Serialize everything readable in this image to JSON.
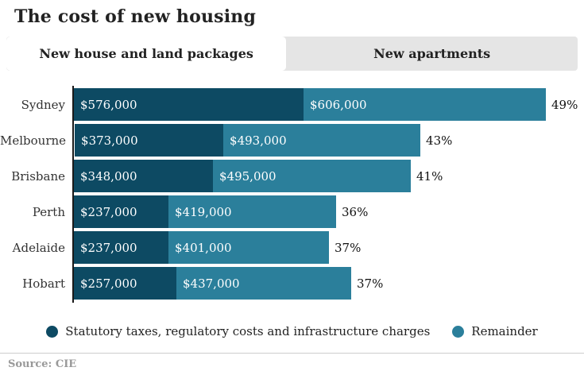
{
  "page": {
    "title": "The cost of new housing",
    "source": "Source: CIE"
  },
  "tabs": [
    {
      "label": "New house and land packages",
      "active": true
    },
    {
      "label": "New apartments",
      "active": false
    }
  ],
  "legend": [
    {
      "label": "Statutory taxes, regulatory costs and infrastructure charges",
      "color": "#0d4a63"
    },
    {
      "label": "Remainder",
      "color": "#2b7f9b"
    }
  ],
  "colors": {
    "statutory": "#0d4a63",
    "remainder": "#2b7f9b",
    "tab_inactive_bg": "#e5e5e5",
    "axis_line": "#1a1a1a"
  },
  "chart_data": {
    "type": "bar",
    "orientation": "horizontal",
    "stacked": true,
    "title": "The cost of new housing",
    "categories": [
      "Sydney",
      "Melbourne",
      "Brisbane",
      "Perth",
      "Adelaide",
      "Hobart"
    ],
    "series": [
      {
        "name": "Statutory taxes, regulatory costs and infrastructure charges",
        "color": "#0d4a63",
        "values": [
          576000,
          373000,
          348000,
          237000,
          237000,
          257000
        ],
        "labels": [
          "$576,000",
          "$373,000",
          "$348,000",
          "$237,000",
          "$237,000",
          "$257,000"
        ]
      },
      {
        "name": "Remainder",
        "color": "#2b7f9b",
        "values": [
          606000,
          493000,
          495000,
          419000,
          401000,
          437000
        ],
        "labels": [
          "$606,000",
          "$493,000",
          "$495,000",
          "$419,000",
          "$401,000",
          "$437,000"
        ]
      }
    ],
    "totals": [
      1182000,
      866000,
      843000,
      656000,
      638000,
      694000
    ],
    "percent_labels": [
      "49%",
      "43%",
      "41%",
      "36%",
      "37%",
      "37%"
    ],
    "legend_position": "bottom",
    "grid": false
  }
}
